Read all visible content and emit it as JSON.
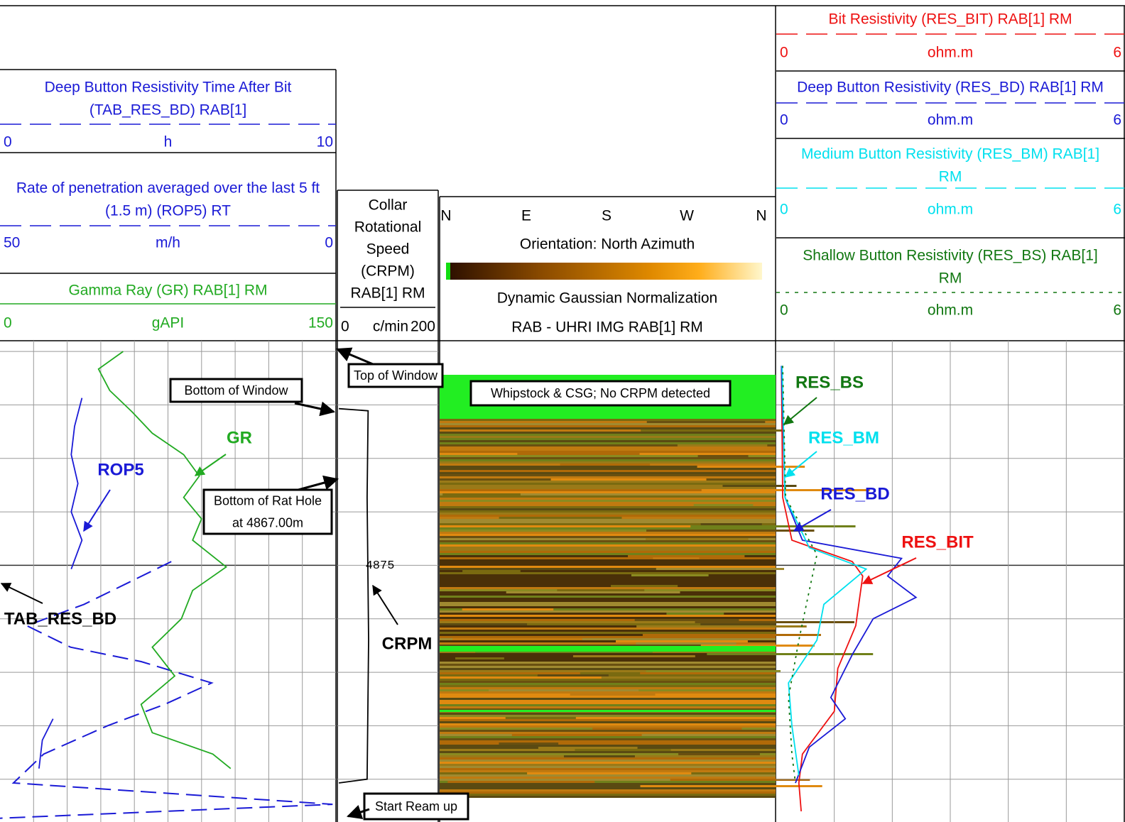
{
  "chart_data": {
    "type": "well-log",
    "depth": {
      "ylim": [
        4870.8,
        4879.8
      ],
      "grid": [
        4871,
        4872,
        4873,
        4874,
        4875,
        4876,
        4877,
        4878,
        4879
      ],
      "label": {
        "value": 4875,
        "label": "4875"
      }
    },
    "tracks": [
      {
        "xdivisions": 10,
        "curves": [
          {
            "name": [
              "Deep Button Resistivity Time After Bit",
              "(TAB_RES_BD) RAB[1]"
            ],
            "unit": "h",
            "xlim": [
              0,
              10
            ],
            "color": "#1a1ad6",
            "line_style": "dash",
            "depth": [
              4874.93,
              4875.33,
              4875.73,
              4876.13,
              4876.53,
              4876.8,
              4877.2,
              4877.6,
              4878.0,
              4878.53,
              4879.07,
              4879.47,
              4879.73
            ],
            "values": [
              5.1,
              3.8,
              2.5,
              0.8,
              2.1,
              4.2,
              6.3,
              4.9,
              3.2,
              1.3,
              0.4,
              9.9,
              0
            ]
          },
          {
            "name": [
              "Rate of penetration averaged over the last 5 ft",
              "(1.5 m) (ROP5) RT"
            ],
            "unit": "m/h",
            "xlim": [
              50,
              0
            ],
            "color": "#1a1ad6",
            "line_style": "dash",
            "depth": [
              4871.87,
              4872.4,
              4872.93,
              4873.47,
              4874.0,
              4874.53,
              4875.07,
              4877.0,
              4877.87,
              4878.27,
              4878.8
            ],
            "values": [
              37.8,
              38.9,
              39.4,
              38.4,
              39.4,
              37.8,
              39.4,
              null,
              42.1,
              43.7,
              44.2
            ]
          },
          {
            "name": [
              "Gamma Ray (GR) RAB[1] RM"
            ],
            "unit": "gAPI",
            "xlim": [
              0,
              150
            ],
            "color": "#22aa22",
            "line_style": "solid",
            "depth": [
              4871.0,
              4871.33,
              4871.73,
              4872.13,
              4872.53,
              4872.93,
              4873.33,
              4873.73,
              4874.13,
              4874.53,
              4875.03,
              4875.47,
              4876.0,
              4876.53,
              4877.07,
              4877.6,
              4878.13,
              4878.53,
              4878.8
            ],
            "values": [
              55,
              44,
              49,
              59,
              68,
              82,
              89,
              82,
              90,
              86,
              101,
              86,
              81,
              68,
              78,
              63,
              68,
              95,
              103
            ]
          }
        ]
      },
      {
        "xdivisions": 1,
        "curves": [
          {
            "name": [
              "Collar",
              "Rotational",
              "Speed",
              "(CRPM)",
              "RAB[1] RM"
            ],
            "unit": "c/min",
            "xlim": [
              0,
              200
            ],
            "color": "#000000",
            "line_style": "none",
            "depth": [
              4872.07,
              4872.11,
              4873.73,
              4876.4,
              4879.0,
              4879.07
            ],
            "values": [
              3,
              61,
              59,
              62,
              59,
              3
            ]
          }
        ]
      },
      {
        "image": {
          "compass": [
            "N",
            "E",
            "S",
            "W",
            "N"
          ],
          "lines": [
            "Orientation: North Azimuth",
            "Dynamic Gaussian Normalization",
            "RAB - UHRI IMG RAB[1] RM"
          ]
        }
      },
      {
        "xdivisions": 6,
        "curves": [
          {
            "name": [
              "Bit Resistivity (RES_BIT) RAB[1] RM"
            ],
            "unit": "ohm.m",
            "xlim": [
              0,
              6
            ],
            "color": "#ee1111",
            "line_style": "dash",
            "depth": [
              4871.33,
              4873.73,
              4874.53,
              4874.93,
              4875.2,
              4876.13,
              4876.93,
              4877.73,
              4878.53,
              4879.07,
              4879.6
            ],
            "values": [
              0.09,
              0.11,
              0.27,
              1.31,
              1.49,
              1.37,
              1.06,
              1.0,
              0.45,
              0.39,
              0.43
            ]
          },
          {
            "name": [
              "Deep Button Resistivity (RES_BD) RAB[1] RM"
            ],
            "unit": "ohm.m",
            "xlim": [
              0,
              6
            ],
            "color": "#1a1ad6",
            "line_style": "dash",
            "depth": [
              4871.27,
              4873.73,
              4874.53,
              4874.87,
              4875.2,
              4875.6,
              4876.0,
              4876.67,
              4877.47,
              4877.87,
              4878.4,
              4879.07
            ],
            "values": [
              0.09,
              0.15,
              0.45,
              2.16,
              1.92,
              2.41,
              1.67,
              1.31,
              0.94,
              1.19,
              0.57,
              0.33
            ]
          },
          {
            "name": [
              "Medium Button Resistivity (RES_BM) RAB[1]",
              "RM"
            ],
            "unit": "ohm.m",
            "xlim": [
              0,
              6
            ],
            "color": "#00e0ee",
            "line_style": "dash",
            "depth": [
              4871.27,
              4873.73,
              4874.67,
              4875.07,
              4875.73,
              4876.4,
              4877.2,
              4878.0,
              4878.93
            ],
            "values": [
              0.1,
              0.15,
              0.57,
              1.55,
              0.82,
              0.7,
              0.21,
              0.27,
              0.39
            ]
          },
          {
            "name": [
              "Shallow Button Resistivity (RES_BS) RAB[1]",
              "RM"
            ],
            "unit": "ohm.m",
            "xlim": [
              0,
              6
            ],
            "color": "#117711",
            "line_style": "dot",
            "depth": [
              4871.27,
              4873.73,
              4874.8,
              4875.47,
              4876.4,
              4877.47,
              4878.53,
              4879.07
            ],
            "values": [
              0.11,
              0.16,
              0.7,
              0.57,
              0.39,
              0.21,
              0.27,
              0.33
            ]
          }
        ]
      }
    ],
    "annotations": [
      {
        "text": [
          "Top of Window"
        ]
      },
      {
        "text": [
          "Bottom of Window"
        ]
      },
      {
        "text": [
          "Bottom of Rat Hole",
          "at 4867.00m"
        ]
      },
      {
        "text": [
          "Start Ream up"
        ]
      },
      {
        "text": [
          "Whipstock & CSG; No CRPM detected"
        ]
      }
    ],
    "curve_labels": [
      "TAB_RES_BD",
      "ROP5",
      "GR",
      "CRPM",
      "RES_BS",
      "RES_BM",
      "RES_BD",
      "RES_BIT"
    ]
  }
}
